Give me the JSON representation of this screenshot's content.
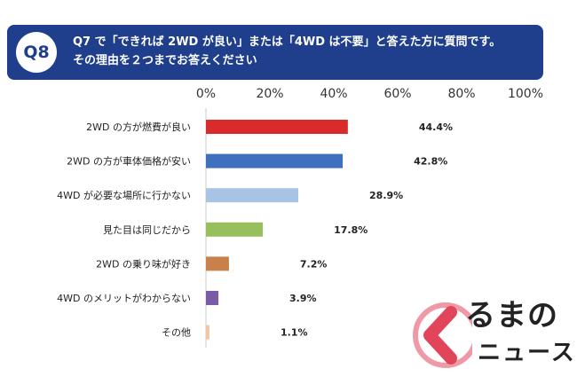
{
  "header": {
    "badge": "Q8",
    "line1": "Q7 で「できれば 2WD が良い」または「4WD は不要」と答えた方に質問です。",
    "line2": "その理由を２つまでお答えください"
  },
  "chart_data": {
    "type": "bar",
    "orientation": "horizontal",
    "xlim": [
      0,
      100
    ],
    "ticks": [
      "0%",
      "20%",
      "40%",
      "60%",
      "80%",
      "100%"
    ],
    "tick_values": [
      0,
      20,
      40,
      60,
      80,
      100
    ],
    "categories": [
      "2WD の方が燃費が良い",
      "2WD の方が車体価格が安い",
      "4WD が必要な場所に行かない",
      "見た目は同じだから",
      "2WD の乗り味が好き",
      "4WD のメリットがわからない",
      "その他"
    ],
    "values": [
      44.4,
      42.8,
      28.9,
      17.8,
      7.2,
      3.9,
      1.1
    ],
    "value_labels": [
      "44.4%",
      "42.8%",
      "28.9%",
      "17.8%",
      "7.2%",
      "3.9%",
      "1.1%"
    ],
    "colors": [
      "#d92b2b",
      "#3f6fbf",
      "#a8c3e6",
      "#97bf5b",
      "#c9804a",
      "#7a5ba6",
      "#f2c7a0"
    ]
  },
  "logo": {
    "line1": "るまの",
    "line2": "ニュース",
    "accent": "#e2455a"
  }
}
